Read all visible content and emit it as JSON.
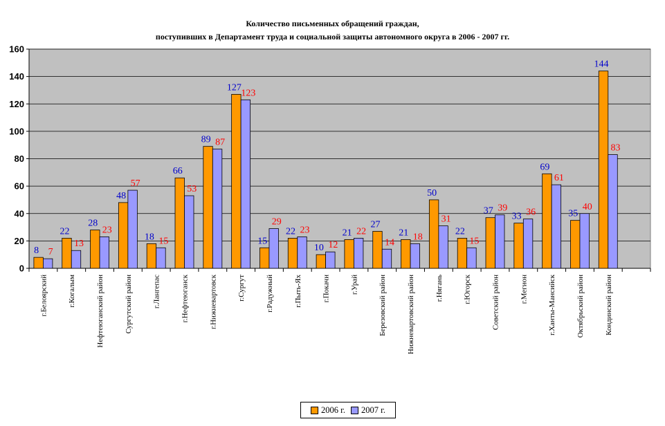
{
  "colors": {
    "series2006": "#ff9900",
    "series2007": "#9999ff",
    "plot_bg": "#c0c0c0",
    "label2006": "#0000cc",
    "label2007": "#ff0000"
  },
  "chart_data": {
    "type": "bar",
    "title": "Количество письменных обращений граждан,",
    "subtitle": "поступивших в Департамент труда и социальной защиты автономного округа в 2006 - 2007 гг.",
    "xlabel": "",
    "ylabel": "",
    "ylim": [
      0,
      160
    ],
    "yticks": [
      0,
      20,
      40,
      60,
      80,
      100,
      120,
      140,
      160
    ],
    "grid": true,
    "legend_position": "bottom-center",
    "categories": [
      "г.Белоярский",
      "г.Когалым",
      "Нефтеюганский район",
      "Сургутский район",
      "г.Лангепас",
      "г.Нефтеюганск",
      "г.Нижневартовск",
      "г.Сургут",
      "г.Радужный",
      "г.Пыть-Ях",
      "г.Покачи",
      "г.Урай",
      "Березовский район",
      "Нижневартовский район",
      "г.Нягань",
      "г.Югорск",
      "Советский район",
      "г.Мегион",
      "г.Ханты-Мансийск",
      "Октябрьский район",
      "Кондинский район"
    ],
    "series": [
      {
        "name": "2006 г.",
        "values": [
          8,
          22,
          28,
          48,
          18,
          66,
          89,
          127,
          15,
          22,
          10,
          21,
          27,
          21,
          50,
          22,
          37,
          33,
          69,
          35,
          144
        ]
      },
      {
        "name": "2007 г.",
        "values": [
          7,
          13,
          23,
          57,
          15,
          53,
          87,
          123,
          29,
          23,
          12,
          22,
          14,
          18,
          31,
          15,
          39,
          36,
          61,
          40,
          83
        ]
      }
    ]
  }
}
